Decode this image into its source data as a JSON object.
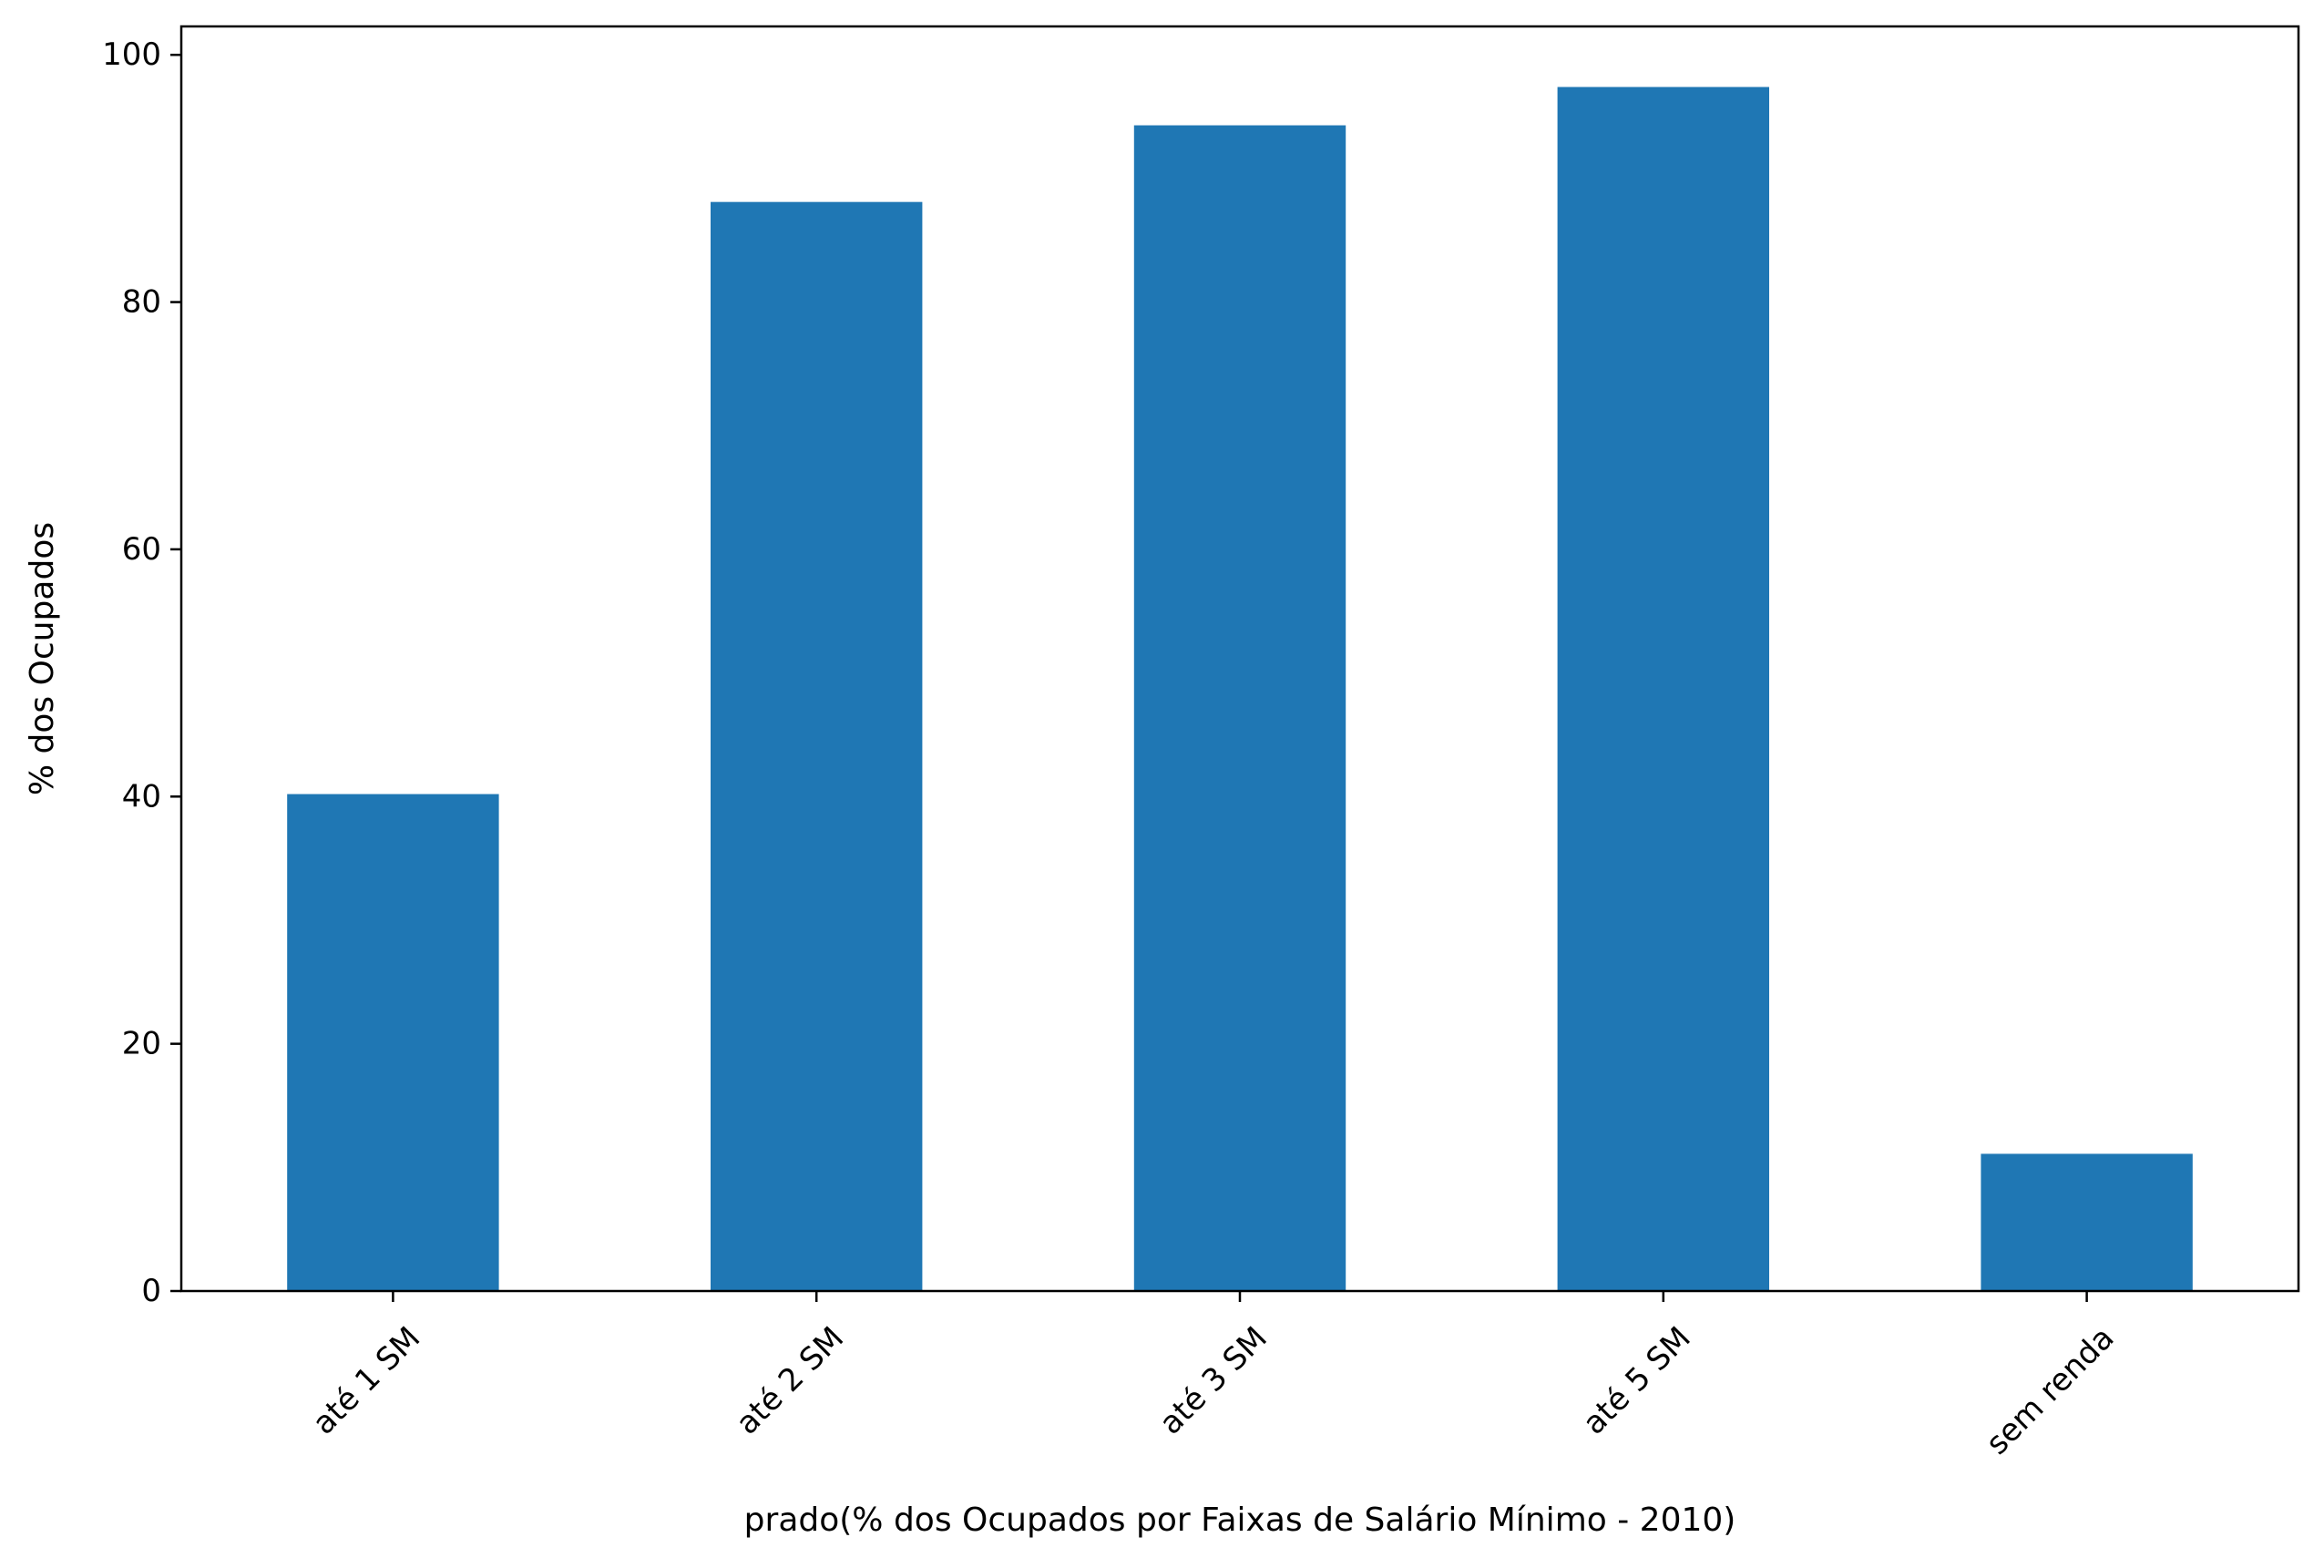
{
  "chart_data": {
    "type": "bar",
    "title": "",
    "xlabel": "prado(% dos Ocupados por Faixas de Salário Mínimo - 2010)",
    "ylabel": "% dos Ocupados",
    "categories": [
      "até 1 SM",
      "até 2 SM",
      "até 3 SM",
      "até 5 SM",
      "sem renda"
    ],
    "values": [
      40.2,
      88.1,
      94.3,
      97.4,
      11.1
    ],
    "ylim": [
      0,
      102.3
    ],
    "yticks": [
      0,
      20,
      40,
      60,
      80,
      100
    ],
    "grid": false,
    "legend": "none",
    "bar_color": "#1f77b4",
    "xtick_rotation": 45
  }
}
